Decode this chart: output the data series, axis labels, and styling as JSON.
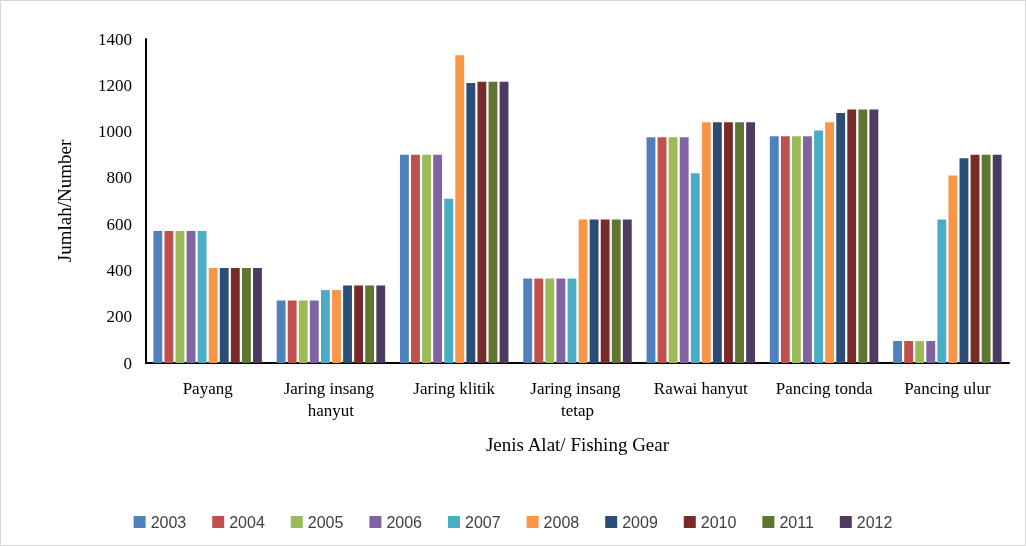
{
  "chart_data": {
    "type": "bar",
    "xlabel": "Jenis Alat/ Fishing Gear",
    "ylabel": "Jumlah/Number",
    "categories": [
      "Payang",
      "Jaring insang hanyut",
      "Jaring klitik",
      "Jaring insang tetap",
      "Rawai hanyut",
      "Pancing tonda",
      "Pancing ulur"
    ],
    "series": [
      {
        "name": "2003",
        "color": "#4f81bd",
        "values": [
          570,
          270,
          900,
          365,
          975,
          980,
          95
        ]
      },
      {
        "name": "2004",
        "color": "#c0504d",
        "values": [
          570,
          270,
          900,
          365,
          975,
          980,
          95
        ]
      },
      {
        "name": "2005",
        "color": "#9bbb59",
        "values": [
          570,
          270,
          900,
          365,
          975,
          980,
          95
        ]
      },
      {
        "name": "2006",
        "color": "#8064a2",
        "values": [
          570,
          270,
          900,
          365,
          975,
          980,
          95
        ]
      },
      {
        "name": "2007",
        "color": "#4bacc6",
        "values": [
          570,
          315,
          710,
          365,
          820,
          1005,
          620
        ]
      },
      {
        "name": "2008",
        "color": "#f79646",
        "values": [
          410,
          315,
          1330,
          620,
          1040,
          1040,
          810
        ]
      },
      {
        "name": "2009",
        "color": "#2c4d75",
        "values": [
          410,
          335,
          1210,
          620,
          1040,
          1080,
          885
        ]
      },
      {
        "name": "2010",
        "color": "#772c2a",
        "values": [
          410,
          335,
          1215,
          620,
          1040,
          1095,
          900
        ]
      },
      {
        "name": "2011",
        "color": "#5f7530",
        "values": [
          410,
          335,
          1215,
          620,
          1040,
          1095,
          900
        ]
      },
      {
        "name": "2012",
        "color": "#4d3b62",
        "values": [
          410,
          335,
          1215,
          620,
          1040,
          1095,
          900
        ]
      }
    ],
    "ylim": [
      0,
      1400
    ],
    "yticks": [
      0,
      200,
      400,
      600,
      800,
      1000,
      1200,
      1400
    ],
    "grid": false,
    "legend": "bottom"
  }
}
